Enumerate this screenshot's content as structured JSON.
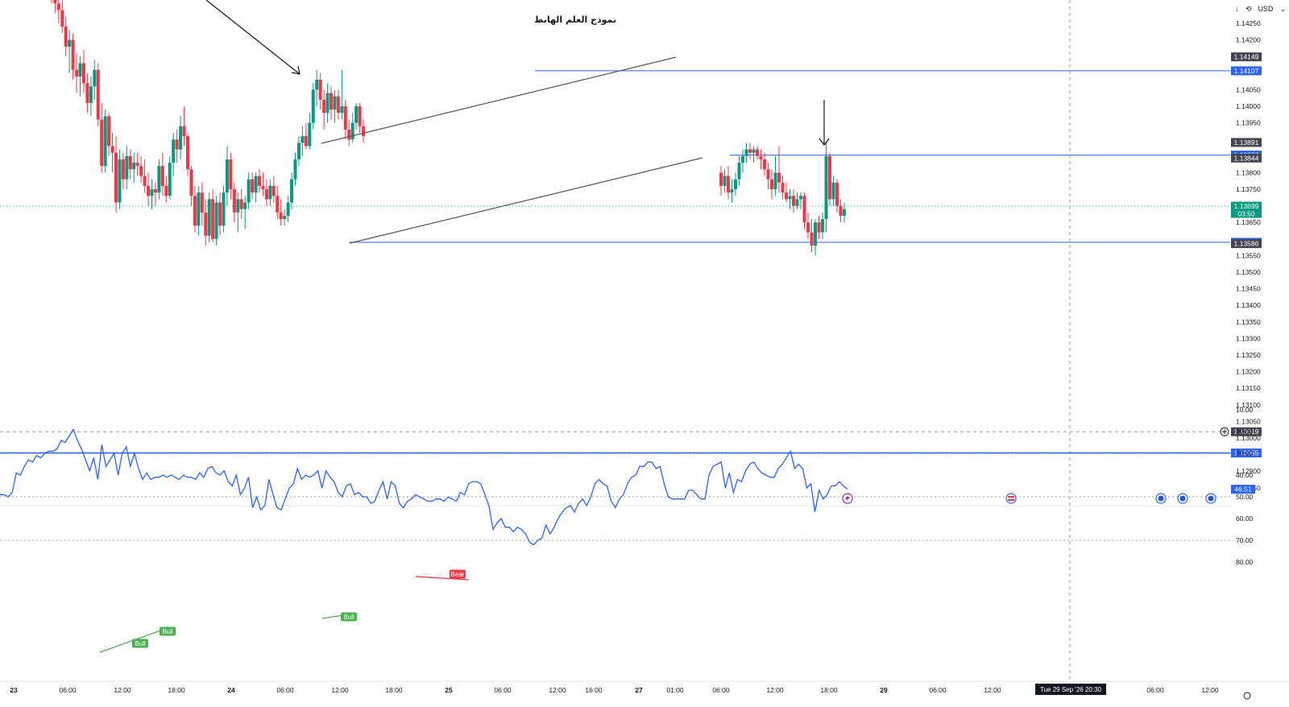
{
  "toolbar": {
    "currency": "USD",
    "arrow_icon": "down-arrow-icon",
    "sync_icon": "sync-icon",
    "menu_icon": "chevron-down-icon"
  },
  "annotation": {
    "text": "نموذج العلم الهابط"
  },
  "colors": {
    "up": "#089981",
    "down": "#f23645",
    "level": "#2962ff",
    "trend": "#555555",
    "rsi": "#2962ff",
    "rsi_band": "#e3effd",
    "bull": "#4caf50",
    "bear": "#f23645"
  },
  "chart_data": [
    {
      "type": "candlestick",
      "title": "",
      "instrument_hint": "EURUSD",
      "ylim": [
        1.1282,
        1.1434
      ],
      "y_ticks": [
        "1.14250",
        "1.14200",
        "1.14050",
        "1.14000",
        "1.13950",
        "1.13800",
        "1.13750",
        "1.13650",
        "1.13550",
        "1.13500",
        "1.13450",
        "1.13400",
        "1.13350",
        "1.13300",
        "1.13250",
        "1.13200",
        "1.13150",
        "1.13100",
        "1.13050",
        "1.13000",
        "1.12900",
        "1.12850"
      ],
      "price_tags": [
        {
          "label": "1.14149",
          "value": 1.14149,
          "style": "dark"
        },
        {
          "label": "1.14107",
          "value": 1.14107,
          "style": "blue"
        },
        {
          "label": "1.13891",
          "value": 1.13891,
          "style": "dark"
        },
        {
          "label": "1.13853",
          "value": 1.13853,
          "style": "blue"
        },
        {
          "label": "1.13844",
          "value": 1.13844,
          "style": "dark"
        },
        {
          "label": "1.13699",
          "value": 1.13699,
          "style": "green",
          "countdown": "03:50"
        },
        {
          "label": "1.13590",
          "value": 1.1359,
          "style": "blue"
        },
        {
          "label": "1.13586",
          "value": 1.13586,
          "style": "dark"
        },
        {
          "label": "1.13019",
          "value": 1.13019,
          "style": "dark"
        },
        {
          "label": "1.12955",
          "value": 1.12955,
          "style": "blue"
        }
      ],
      "horizontal_levels": [
        1.14107,
        1.13853,
        1.1359,
        1.12955
      ],
      "current_price": 1.13699,
      "crosshair_price": 1.13019,
      "x_labels": [
        "23",
        "06:00",
        "12:00",
        "18:00",
        "24",
        "06:00",
        "12:00",
        "18:00",
        "25",
        "06:00",
        "12:00",
        "16:00",
        "27",
        "01:00",
        "06:00",
        "12:00",
        "18:00",
        "29",
        "06:00",
        "12:00",
        "06:00",
        "12:00"
      ],
      "x_label_bold": [
        "23",
        "24",
        "25",
        "27",
        "29"
      ],
      "crosshair_time": "Tue 29 Sep '26  20:30",
      "candles": [
        [
          1.1448,
          1.145,
          1.1441,
          1.1443
        ],
        [
          1.1443,
          1.1445,
          1.1436,
          1.1438
        ],
        [
          1.1438,
          1.1441,
          1.1431,
          1.1435
        ],
        [
          1.1435,
          1.1439,
          1.1428,
          1.1431
        ],
        [
          1.1431,
          1.1433,
          1.1425,
          1.1429
        ],
        [
          1.1429,
          1.1432,
          1.1422,
          1.1424
        ],
        [
          1.1424,
          1.1427,
          1.1415,
          1.1418
        ],
        [
          1.1418,
          1.1423,
          1.141,
          1.142
        ],
        [
          1.142,
          1.1422,
          1.1408,
          1.1411
        ],
        [
          1.1411,
          1.1416,
          1.1404,
          1.1409
        ],
        [
          1.1409,
          1.1415,
          1.1403,
          1.1413
        ],
        [
          1.1413,
          1.1417,
          1.1404,
          1.1407
        ],
        [
          1.1407,
          1.141,
          1.1398,
          1.1401
        ],
        [
          1.1401,
          1.1409,
          1.1397,
          1.1406
        ],
        [
          1.1406,
          1.1414,
          1.1402,
          1.1411
        ],
        [
          1.1411,
          1.1413,
          1.1394,
          1.1396
        ],
        [
          1.1396,
          1.1401,
          1.138,
          1.1382
        ],
        [
          1.1382,
          1.1399,
          1.138,
          1.1397
        ],
        [
          1.1397,
          1.1398,
          1.1385,
          1.1388
        ],
        [
          1.1388,
          1.1392,
          1.138,
          1.1386
        ],
        [
          1.1386,
          1.1391,
          1.1368,
          1.1371
        ],
        [
          1.1371,
          1.1387,
          1.1369,
          1.1384
        ],
        [
          1.1384,
          1.1386,
          1.1375,
          1.1378
        ],
        [
          1.1378,
          1.1388,
          1.1375,
          1.1385
        ],
        [
          1.1385,
          1.1387,
          1.1378,
          1.1381
        ],
        [
          1.1381,
          1.1386,
          1.1377,
          1.1383
        ],
        [
          1.1383,
          1.1386,
          1.1379,
          1.1382
        ],
        [
          1.1382,
          1.1385,
          1.1377,
          1.1379
        ],
        [
          1.1379,
          1.1384,
          1.1374,
          1.1376
        ],
        [
          1.1376,
          1.138,
          1.137,
          1.1373
        ],
        [
          1.1373,
          1.1378,
          1.1369,
          1.1375
        ],
        [
          1.1375,
          1.1377,
          1.137,
          1.1374
        ],
        [
          1.1374,
          1.1384,
          1.1372,
          1.1382
        ],
        [
          1.1382,
          1.1386,
          1.1373,
          1.1376
        ],
        [
          1.1376,
          1.1379,
          1.1371,
          1.1373
        ],
        [
          1.1373,
          1.1385,
          1.1372,
          1.1383
        ],
        [
          1.1383,
          1.1392,
          1.1379,
          1.139
        ],
        [
          1.139,
          1.1393,
          1.1383,
          1.1387
        ],
        [
          1.1387,
          1.1397,
          1.1384,
          1.1394
        ],
        [
          1.1394,
          1.14,
          1.1388,
          1.1391
        ],
        [
          1.1391,
          1.1392,
          1.1379,
          1.1381
        ],
        [
          1.1381,
          1.1382,
          1.137,
          1.1373
        ],
        [
          1.1373,
          1.1376,
          1.1362,
          1.1364
        ],
        [
          1.1364,
          1.1376,
          1.1361,
          1.1374
        ],
        [
          1.1374,
          1.1377,
          1.1364,
          1.1368
        ],
        [
          1.1368,
          1.1372,
          1.1358,
          1.1361
        ],
        [
          1.1361,
          1.1374,
          1.1359,
          1.1372
        ],
        [
          1.1372,
          1.1375,
          1.1359,
          1.136
        ],
        [
          1.136,
          1.1373,
          1.1358,
          1.1371
        ],
        [
          1.1371,
          1.1374,
          1.1361,
          1.1364
        ],
        [
          1.1364,
          1.1376,
          1.1362,
          1.1374
        ],
        [
          1.1374,
          1.1388,
          1.137,
          1.1384
        ],
        [
          1.1384,
          1.1386,
          1.1372,
          1.1375
        ],
        [
          1.1375,
          1.1377,
          1.1365,
          1.1368
        ],
        [
          1.1368,
          1.1374,
          1.1362,
          1.1372
        ],
        [
          1.1372,
          1.1375,
          1.1366,
          1.1369
        ],
        [
          1.1369,
          1.1373,
          1.1363,
          1.1371
        ],
        [
          1.1371,
          1.138,
          1.1369,
          1.1378
        ],
        [
          1.1378,
          1.138,
          1.1372,
          1.1374
        ],
        [
          1.1374,
          1.138,
          1.1371,
          1.1379
        ],
        [
          1.1379,
          1.1381,
          1.1374,
          1.1376
        ],
        [
          1.1376,
          1.138,
          1.1373,
          1.1375
        ],
        [
          1.1375,
          1.1378,
          1.137,
          1.1372
        ],
        [
          1.1372,
          1.1378,
          1.137,
          1.1376
        ],
        [
          1.1376,
          1.1379,
          1.1371,
          1.1373
        ],
        [
          1.1373,
          1.1376,
          1.1366,
          1.1368
        ],
        [
          1.1368,
          1.1372,
          1.1364,
          1.1366
        ],
        [
          1.1366,
          1.1369,
          1.1364,
          1.1367
        ],
        [
          1.1367,
          1.1373,
          1.1365,
          1.1371
        ],
        [
          1.1371,
          1.138,
          1.1369,
          1.1378
        ],
        [
          1.1378,
          1.1386,
          1.1376,
          1.1384
        ],
        [
          1.1384,
          1.1391,
          1.1382,
          1.1389
        ],
        [
          1.1389,
          1.1394,
          1.1385,
          1.1391
        ],
        [
          1.1391,
          1.1395,
          1.1387,
          1.1388
        ],
        [
          1.1388,
          1.1398,
          1.1387,
          1.1395
        ],
        [
          1.1395,
          1.1407,
          1.1393,
          1.1405
        ],
        [
          1.1405,
          1.1411,
          1.14,
          1.1408
        ],
        [
          1.1408,
          1.141,
          1.1399,
          1.1402
        ],
        [
          1.1402,
          1.1405,
          1.1393,
          1.1398
        ],
        [
          1.1398,
          1.1407,
          1.1395,
          1.1404
        ],
        [
          1.1404,
          1.1406,
          1.1396,
          1.1399
        ],
        [
          1.1399,
          1.1405,
          1.1395,
          1.1403
        ],
        [
          1.1403,
          1.1405,
          1.1396,
          1.1398
        ],
        [
          1.1398,
          1.1411,
          1.1396,
          1.14
        ],
        [
          1.14,
          1.1402,
          1.139,
          1.1393
        ],
        [
          1.1393,
          1.1396,
          1.1388,
          1.139
        ],
        [
          1.139,
          1.1398,
          1.1389,
          1.1395
        ],
        [
          1.1395,
          1.1401,
          1.1393,
          1.14
        ],
        [
          1.14,
          1.1401,
          1.1392,
          1.1394
        ],
        [
          1.1394,
          1.1396,
          1.1389,
          1.1391
        ]
      ],
      "candles_2": [
        [
          1.138,
          1.1382,
          1.1373,
          1.1376
        ],
        [
          1.1376,
          1.1381,
          1.1374,
          1.1379
        ],
        [
          1.1379,
          1.1382,
          1.1372,
          1.1374
        ],
        [
          1.1374,
          1.1378,
          1.1371,
          1.1375
        ],
        [
          1.1375,
          1.138,
          1.1373,
          1.1378
        ],
        [
          1.1378,
          1.1385,
          1.1376,
          1.1383
        ],
        [
          1.1383,
          1.1387,
          1.138,
          1.1385
        ],
        [
          1.1385,
          1.1389,
          1.1383,
          1.1387
        ],
        [
          1.1387,
          1.1389,
          1.1384,
          1.1386
        ],
        [
          1.1386,
          1.1388,
          1.1383,
          1.1387
        ],
        [
          1.1387,
          1.1388,
          1.1384,
          1.1385
        ],
        [
          1.1385,
          1.1387,
          1.1381,
          1.1384
        ],
        [
          1.1384,
          1.1386,
          1.1379,
          1.1381
        ],
        [
          1.1381,
          1.1383,
          1.1375,
          1.1378
        ],
        [
          1.1378,
          1.1381,
          1.1372,
          1.1375
        ],
        [
          1.1375,
          1.1385,
          1.1373,
          1.138
        ],
        [
          1.138,
          1.1388,
          1.1374,
          1.1377
        ],
        [
          1.1377,
          1.1379,
          1.1372,
          1.1374
        ],
        [
          1.1374,
          1.1377,
          1.1371,
          1.1372
        ],
        [
          1.1372,
          1.1375,
          1.1369,
          1.1373
        ],
        [
          1.1373,
          1.1375,
          1.1368,
          1.137
        ],
        [
          1.137,
          1.1374,
          1.1369,
          1.1372
        ],
        [
          1.1372,
          1.1374,
          1.1369,
          1.1373
        ],
        [
          1.1373,
          1.1374,
          1.1363,
          1.1365
        ],
        [
          1.1365,
          1.1368,
          1.136,
          1.1362
        ],
        [
          1.1362,
          1.1366,
          1.1356,
          1.1358
        ],
        [
          1.1358,
          1.1366,
          1.1355,
          1.1365
        ],
        [
          1.1365,
          1.1367,
          1.136,
          1.1362
        ],
        [
          1.1362,
          1.1368,
          1.136,
          1.1366
        ],
        [
          1.1366,
          1.1389,
          1.1362,
          1.1385
        ],
        [
          1.1385,
          1.1386,
          1.137,
          1.1372
        ],
        [
          1.1372,
          1.1379,
          1.137,
          1.1377
        ],
        [
          1.1377,
          1.1378,
          1.1368,
          1.137
        ],
        [
          1.137,
          1.1372,
          1.1365,
          1.1367
        ],
        [
          1.1367,
          1.1371,
          1.1365,
          1.1369
        ]
      ]
    },
    {
      "type": "line",
      "title": "",
      "indicator_hint": "RSI",
      "ylim": [
        7,
        83
      ],
      "y_ticks": [
        "80.00",
        "70.00",
        "60.00",
        "50.00",
        "40.00",
        "30.00",
        "20.00",
        "10.00"
      ],
      "band": [
        30,
        70
      ],
      "midline": 50,
      "current_label": "46.51",
      "values": [
        49,
        49,
        50,
        48,
        39,
        40,
        36,
        33,
        34,
        31,
        32,
        30,
        29,
        29,
        28,
        24,
        25,
        22,
        19,
        24,
        28,
        33,
        38,
        32,
        42,
        26,
        36,
        33,
        30,
        40,
        30,
        27,
        36,
        30,
        37,
        42,
        39,
        42,
        41,
        41,
        40,
        41,
        40,
        41,
        42,
        40,
        41,
        41,
        42,
        39,
        41,
        37,
        36,
        39,
        40,
        38,
        43,
        45,
        40,
        49,
        46,
        41,
        55,
        50,
        56,
        54,
        42,
        49,
        55,
        56,
        51,
        46,
        44,
        37,
        42,
        40,
        41,
        40,
        38,
        46,
        38,
        41,
        43,
        48,
        50,
        45,
        44,
        49,
        48,
        50,
        50,
        53,
        52,
        47,
        43,
        51,
        43,
        45,
        53,
        55,
        52,
        51,
        49,
        50,
        51,
        52,
        52,
        51,
        51,
        52,
        50,
        51,
        52,
        48,
        49,
        44,
        43,
        43,
        44,
        49,
        54,
        65,
        62,
        60,
        64,
        64,
        66,
        64,
        65,
        67,
        71,
        72,
        70,
        69,
        63,
        67,
        64,
        60,
        57,
        55,
        54,
        57,
        53,
        51,
        54,
        50,
        44,
        42,
        44,
        45,
        52,
        55,
        51,
        49,
        44,
        41,
        40,
        36,
        36,
        34,
        34,
        37,
        36,
        44,
        50,
        51,
        51,
        51,
        51,
        47,
        47,
        49,
        51,
        51,
        40,
        36,
        35,
        34,
        46,
        39,
        48,
        42,
        43,
        38,
        35,
        34,
        37,
        39,
        40,
        41,
        41,
        37,
        35,
        32,
        29,
        37,
        35,
        37,
        46,
        44,
        57,
        47,
        51,
        49,
        45,
        45,
        43,
        45,
        46.51
      ],
      "markers": [
        {
          "label": "Bull",
          "kind": "bull"
        },
        {
          "label": "Bull",
          "kind": "bull"
        },
        {
          "label": "Bull",
          "kind": "bull"
        },
        {
          "label": "Bear",
          "kind": "bear"
        }
      ],
      "event_icon_names": [
        "lightning-icon",
        "us-flag-icon",
        "globe-icon",
        "globe-icon",
        "eu-flag-icon"
      ]
    }
  ]
}
